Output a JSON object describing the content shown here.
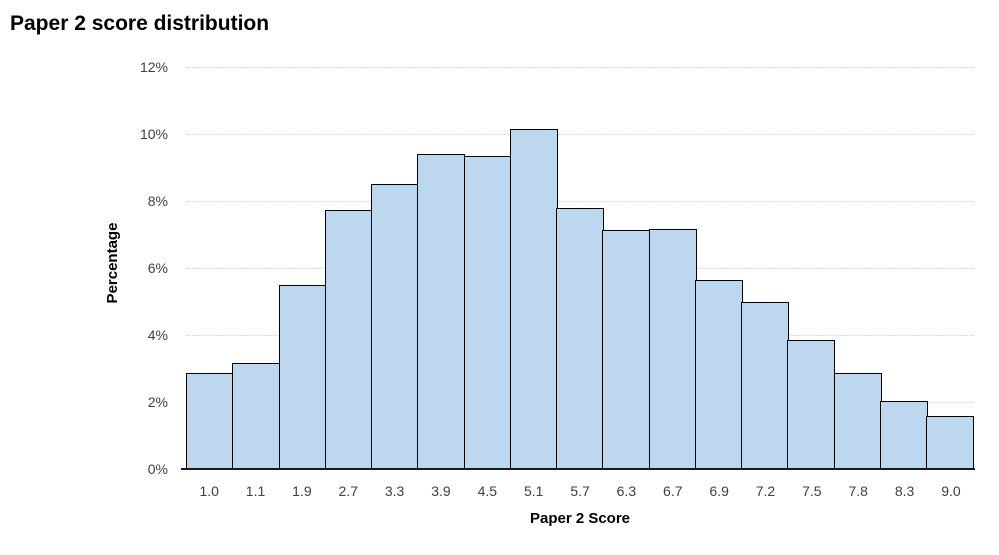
{
  "title": "Paper 2 score distribution",
  "chart_data": {
    "type": "bar",
    "subtype": "histogram",
    "title": "Paper 2 score distribution",
    "categories": [
      "1.0",
      "1.1",
      "1.9",
      "2.7",
      "3.3",
      "3.9",
      "4.5",
      "5.1",
      "5.7",
      "6.3",
      "6.7",
      "6.9",
      "7.2",
      "7.5",
      "7.8",
      "8.3",
      "9.0"
    ],
    "values": [
      2.88,
      3.17,
      5.48,
      7.72,
      8.52,
      9.4,
      9.33,
      10.16,
      7.79,
      7.12,
      7.16,
      5.63,
      4.99,
      3.86,
      2.88,
      2.04,
      1.59
    ],
    "xlabel": "Paper 2 Score",
    "ylabel": "Percentage",
    "ylim": [
      0,
      12
    ],
    "ytick_step": 2,
    "ytick_labels": [
      "0%",
      "2%",
      "4%",
      "6%",
      "8%",
      "10%",
      "12%"
    ],
    "grid": true,
    "legend": "none",
    "colors": {
      "bar_fill": "#bdd7ee",
      "bar_border": "#000000",
      "gridline": "#d9d9d9",
      "axis_line": "#1a1a1a",
      "tick_label": "#404040",
      "title_text": "#000000"
    }
  }
}
